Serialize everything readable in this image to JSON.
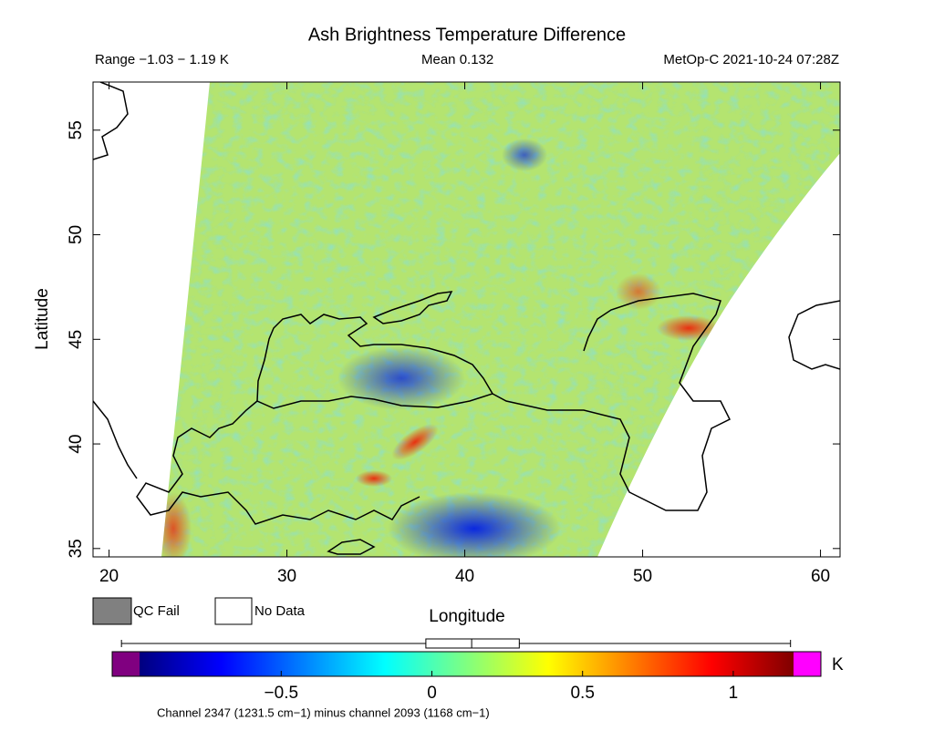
{
  "chart_data": {
    "type": "map",
    "title": "Ash Brightness Temperature Difference",
    "header": {
      "range_word": "Range",
      "range_sep": "−",
      "mean_word": "Mean",
      "satellite": "MetOp-C 2021-10-24 07:28Z"
    },
    "unit": "K",
    "stats": {
      "min": {
        "value": -1.03,
        "label": "−1.03"
      },
      "max": {
        "value": 1.19,
        "label": "1.19"
      },
      "mean": {
        "value": 0.132,
        "label": "0.132"
      },
      "q1": -0.02,
      "q3": 0.29
    },
    "xlabel": "Longitude",
    "ylabel": "Latitude",
    "xlim": [
      19.1,
      61.1
    ],
    "ylim": [
      34.6,
      57.3
    ],
    "xticks": [
      20,
      30,
      40,
      50,
      60
    ],
    "yticks": [
      35,
      40,
      45,
      50,
      55
    ],
    "legend": [
      {
        "name": "QC Fail",
        "color": "#808080"
      },
      {
        "name": "No Data",
        "color": "#ffffff"
      }
    ],
    "colorbar": {
      "lim": [
        -0.97,
        1.2
      ],
      "ticks": [
        {
          "value": -0.5,
          "label": "−0.5"
        },
        0,
        0.5,
        1
      ],
      "colors": [
        "#00007f",
        "#0000ff",
        "#0080ff",
        "#00ffff",
        "#80ff80",
        "#ffff00",
        "#ff8000",
        "#ff0000",
        "#7f0000"
      ],
      "under_color": "#800080",
      "over_color": "#ff00ff"
    },
    "footnote": "Channel 2347 (1231.5 cm−1) minus channel 2093 (1168 cm−1)"
  }
}
